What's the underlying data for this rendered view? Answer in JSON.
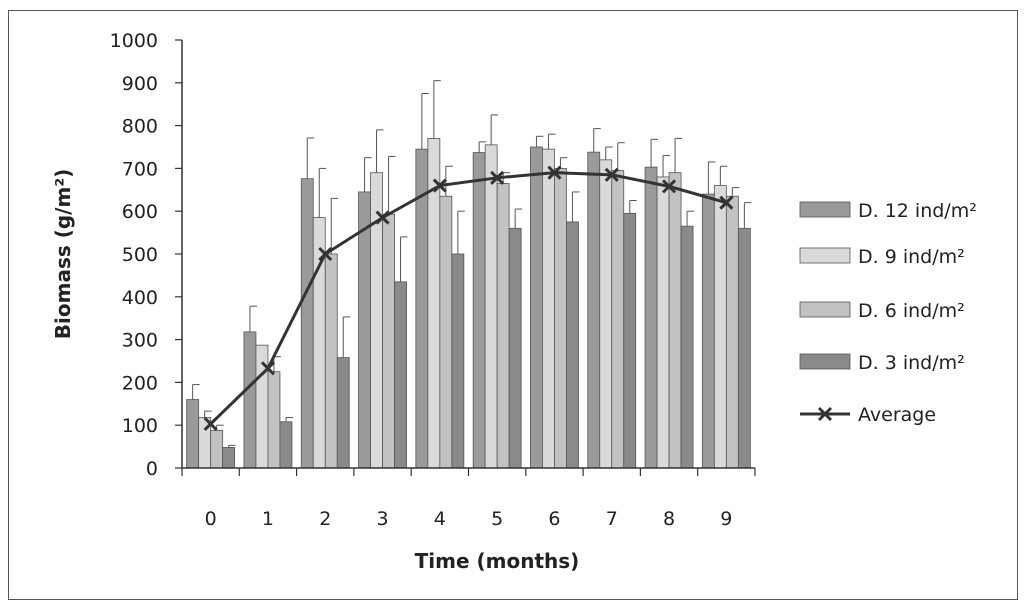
{
  "chart_data": {
    "type": "bar",
    "xlabel": "Time (months)",
    "ylabel": "Biomass (g/m²)",
    "categories": [
      "0",
      "1",
      "2",
      "3",
      "4",
      "5",
      "6",
      "7",
      "8",
      "9"
    ],
    "ylim": [
      0,
      1000
    ],
    "yticks": [
      0,
      100,
      200,
      300,
      400,
      500,
      600,
      700,
      800,
      900,
      1000
    ],
    "grid": false,
    "legend_position": "right",
    "series": [
      {
        "name": "D. 12 ind/m²",
        "color": "#9a9a9a",
        "values": [
          160,
          318,
          676,
          645,
          745,
          737,
          750,
          738,
          703,
          640
        ],
        "errors": [
          35,
          60,
          95,
          80,
          130,
          25,
          25,
          55,
          65,
          75
        ]
      },
      {
        "name": "D. 9 ind/m²",
        "color": "#dadada",
        "values": [
          118,
          287,
          585,
          690,
          770,
          755,
          745,
          720,
          680,
          660
        ],
        "errors": [
          15,
          0,
          115,
          100,
          135,
          70,
          35,
          30,
          50,
          45
        ]
      },
      {
        "name": "D. 6 ind/m²",
        "color": "#c2c2c2",
        "values": [
          88,
          225,
          500,
          593,
          635,
          665,
          700,
          695,
          690,
          635
        ],
        "errors": [
          12,
          35,
          130,
          135,
          70,
          25,
          25,
          65,
          80,
          20
        ]
      },
      {
        "name": "D. 3 ind/m²",
        "color": "#8a8a8a",
        "values": [
          48,
          108,
          258,
          435,
          500,
          560,
          575,
          595,
          565,
          560
        ],
        "errors": [
          5,
          10,
          95,
          105,
          100,
          45,
          70,
          30,
          35,
          60
        ]
      }
    ],
    "line_series": {
      "name": "Average",
      "color": "#333333",
      "marker": "x",
      "values": [
        103,
        233,
        500,
        585,
        660,
        678,
        690,
        685,
        658,
        620
      ]
    }
  }
}
